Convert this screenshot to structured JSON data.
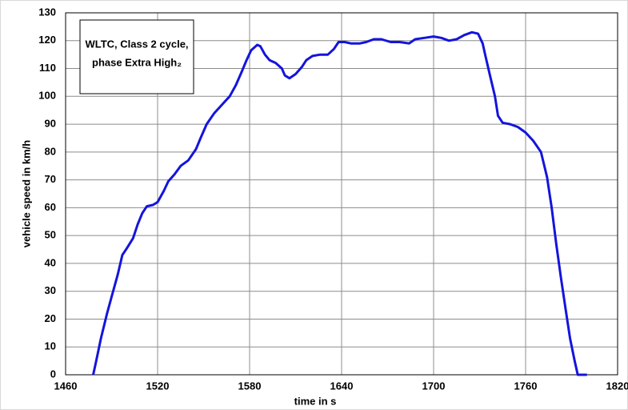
{
  "chart_data": {
    "type": "line",
    "annotation": [
      "WLTC, Class 2 cycle,",
      "phase Extra High₂"
    ],
    "xlabel": "time in s",
    "ylabel": "vehicle speed in km/h",
    "x": [
      1478,
      1480,
      1483,
      1487,
      1490,
      1494,
      1497,
      1500,
      1504,
      1507,
      1510,
      1513,
      1517,
      1520,
      1524,
      1527,
      1531,
      1535,
      1540,
      1545,
      1548,
      1552,
      1557,
      1562,
      1567,
      1571,
      1575,
      1578,
      1581,
      1585,
      1587,
      1590,
      1593,
      1597,
      1601,
      1603,
      1606,
      1610,
      1614,
      1617,
      1621,
      1626,
      1631,
      1635,
      1638,
      1642,
      1646,
      1652,
      1656,
      1661,
      1666,
      1672,
      1678,
      1684,
      1688,
      1694,
      1700,
      1705,
      1710,
      1715,
      1720,
      1725,
      1729,
      1732,
      1734,
      1737,
      1740,
      1742,
      1745,
      1750,
      1755,
      1760,
      1765,
      1770,
      1774,
      1777,
      1780,
      1783,
      1786,
      1789,
      1792,
      1794,
      1800
    ],
    "series": [
      {
        "name": "vehicle speed",
        "color": "#1414dc",
        "values": [
          0,
          5,
          13,
          22,
          28,
          36,
          43,
          45.5,
          49,
          54,
          58,
          60.5,
          61,
          62,
          66,
          69.5,
          72,
          75,
          77,
          81,
          85,
          90,
          94,
          97,
          100,
          104,
          109,
          113,
          116.5,
          118.5,
          118,
          115,
          113,
          112,
          110,
          107.5,
          106.5,
          108,
          110.5,
          113,
          114.5,
          115,
          115,
          117,
          119.5,
          119.5,
          119,
          119,
          119.5,
          120.5,
          120.5,
          119.5,
          119.5,
          119,
          120.5,
          121,
          121.5,
          121,
          120,
          120.5,
          122,
          123,
          122.5,
          119,
          114,
          107,
          100,
          93,
          90.5,
          90,
          89,
          87,
          84,
          80,
          71,
          60,
          47,
          35,
          24,
          13,
          5,
          0,
          0
        ]
      }
    ],
    "xlim": [
      1460,
      1820
    ],
    "xticks": [
      1460,
      1520,
      1580,
      1640,
      1700,
      1760,
      1820
    ],
    "ylim": [
      0,
      130
    ],
    "yticks": [
      0,
      10,
      20,
      30,
      40,
      50,
      60,
      70,
      80,
      90,
      100,
      110,
      120,
      130
    ],
    "grid": true
  }
}
